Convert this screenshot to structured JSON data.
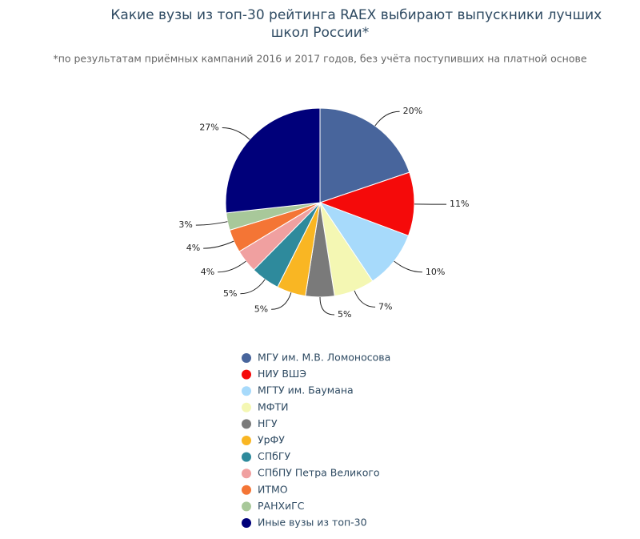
{
  "chart_data": {
    "type": "pie",
    "title": "Какие вузы из топ-30 рейтинга RAEX выбирают выпускники лучших школ России*",
    "subtitle": "*по результатам приёмных кампаний 2016 и 2017 годов, без учёта поступивших на платной основе",
    "categories": [
      "МГУ им. М.В. Ломоносова",
      "НИУ ВШЭ",
      "МГТУ им. Баумана",
      "МФТИ",
      "НГУ",
      "УрФУ",
      "СПбГУ",
      "СПбПУ Петра Великого",
      "ИТМО",
      "РАНХиГС",
      "Иные вузы из топ-30"
    ],
    "values": [
      20,
      11,
      10,
      7,
      5,
      5,
      5,
      4,
      4,
      3,
      27
    ],
    "value_labels": [
      "20%",
      "11%",
      "10%",
      "7%",
      "5%",
      "5%",
      "5%",
      "4%",
      "4%",
      "3%",
      "27%"
    ],
    "colors": [
      "#48659c",
      "#f50a0a",
      "#a7dafb",
      "#f4f7b3",
      "#7a7a7a",
      "#f9b623",
      "#2e8a9c",
      "#f0a0a0",
      "#f47535",
      "#a8c89a",
      "#00007a"
    ],
    "legend": "bottom"
  }
}
